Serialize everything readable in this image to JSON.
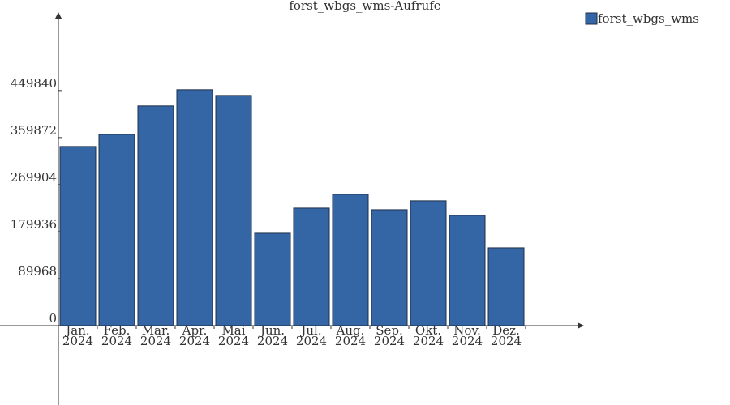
{
  "chart_data": {
    "type": "bar",
    "title": "forst_wbgs_wms-Aufrufe",
    "categories": [
      "Jan. 2024",
      "Feb. 2024",
      "Mär. 2024",
      "Apr. 2024",
      "Mai 2024",
      "Jun. 2024",
      "Jul. 2024",
      "Aug. 2024",
      "Sep. 2024",
      "Okt. 2024",
      "Nov. 2024",
      "Dez. 2024"
    ],
    "series": [
      {
        "name": "forst_wbgs_wms",
        "color": "#3465a4",
        "values": [
          342800,
          366000,
          420400,
          451400,
          440500,
          176800,
          224900,
          251300,
          221800,
          238900,
          211000,
          148900
        ]
      }
    ],
    "ylim": [
      -152000,
      600000
    ],
    "yticks": [
      0,
      89968,
      179936,
      269904,
      359872,
      449840
    ],
    "legend": "top-right"
  }
}
